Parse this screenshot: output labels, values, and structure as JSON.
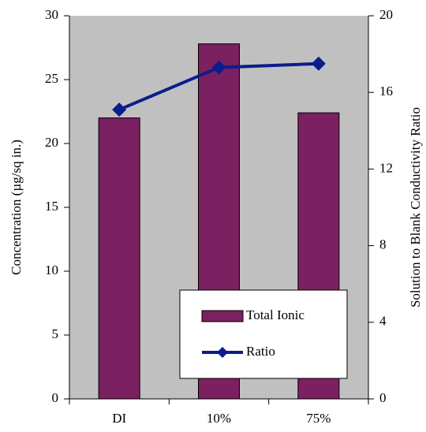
{
  "chart_data": {
    "type": "bar",
    "categories": [
      "DI",
      "10%",
      "75%"
    ],
    "series": [
      {
        "name": "Total Ionic",
        "type": "bar",
        "color": "#7b2060",
        "values": [
          22,
          27.8,
          22.4
        ]
      },
      {
        "name": "Ratio",
        "type": "line",
        "axis": "y2",
        "color": "#0c1c8c",
        "values": [
          15.1,
          17.3,
          17.5
        ]
      }
    ],
    "ylabel": "Concentration (µg/sq in.)",
    "y2label": "Solution to Blank Conductivity Ratio",
    "ylim": [
      0,
      30
    ],
    "yticks": [
      0,
      5,
      10,
      15,
      20,
      25,
      30
    ],
    "y2lim": [
      0,
      20
    ],
    "y2ticks": [
      0,
      4,
      8,
      12,
      16,
      20
    ],
    "legend": "lower right",
    "plot_background": "#c0c0c0"
  }
}
